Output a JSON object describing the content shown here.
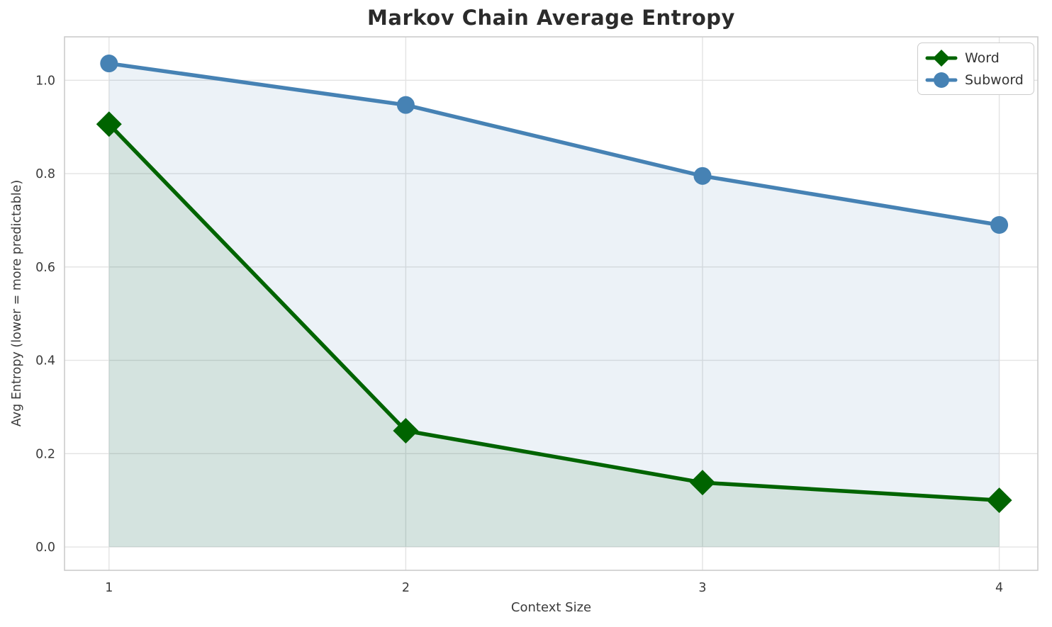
{
  "chart_data": {
    "type": "line",
    "title": "Markov Chain Average Entropy",
    "xlabel": "Context Size",
    "ylabel": "Avg Entropy (lower = more predictable)",
    "x": [
      1,
      2,
      3,
      4
    ],
    "series": [
      {
        "name": "Word",
        "values": [
          0.906,
          0.249,
          0.138,
          0.1
        ],
        "color": "#006400",
        "marker": "diamond",
        "fill_to_zero": true,
        "fill_alpha": 0.1
      },
      {
        "name": "Subword",
        "values": [
          1.036,
          0.947,
          0.795,
          0.69
        ],
        "color": "#4682b4",
        "marker": "circle",
        "fill_to_zero": true,
        "fill_alpha": 0.1
      }
    ],
    "xticks": [
      1,
      2,
      3,
      4
    ],
    "xtick_labels": [
      "1",
      "2",
      "3",
      "4"
    ],
    "yticks": [
      0.0,
      0.2,
      0.4,
      0.6,
      0.8,
      1.0
    ],
    "ytick_labels": [
      "0.0",
      "0.2",
      "0.4",
      "0.6",
      "0.8",
      "1.0"
    ],
    "xlim": [
      0.85,
      4.13
    ],
    "ylim": [
      -0.05,
      1.093
    ],
    "grid": true,
    "legend_position": "upper right"
  },
  "colors": {
    "grid": "#e3e3e3",
    "spine": "#cccccc",
    "tick_text": "#3b3b3b",
    "title_text": "#2b2b2b",
    "background": "#ffffff"
  }
}
